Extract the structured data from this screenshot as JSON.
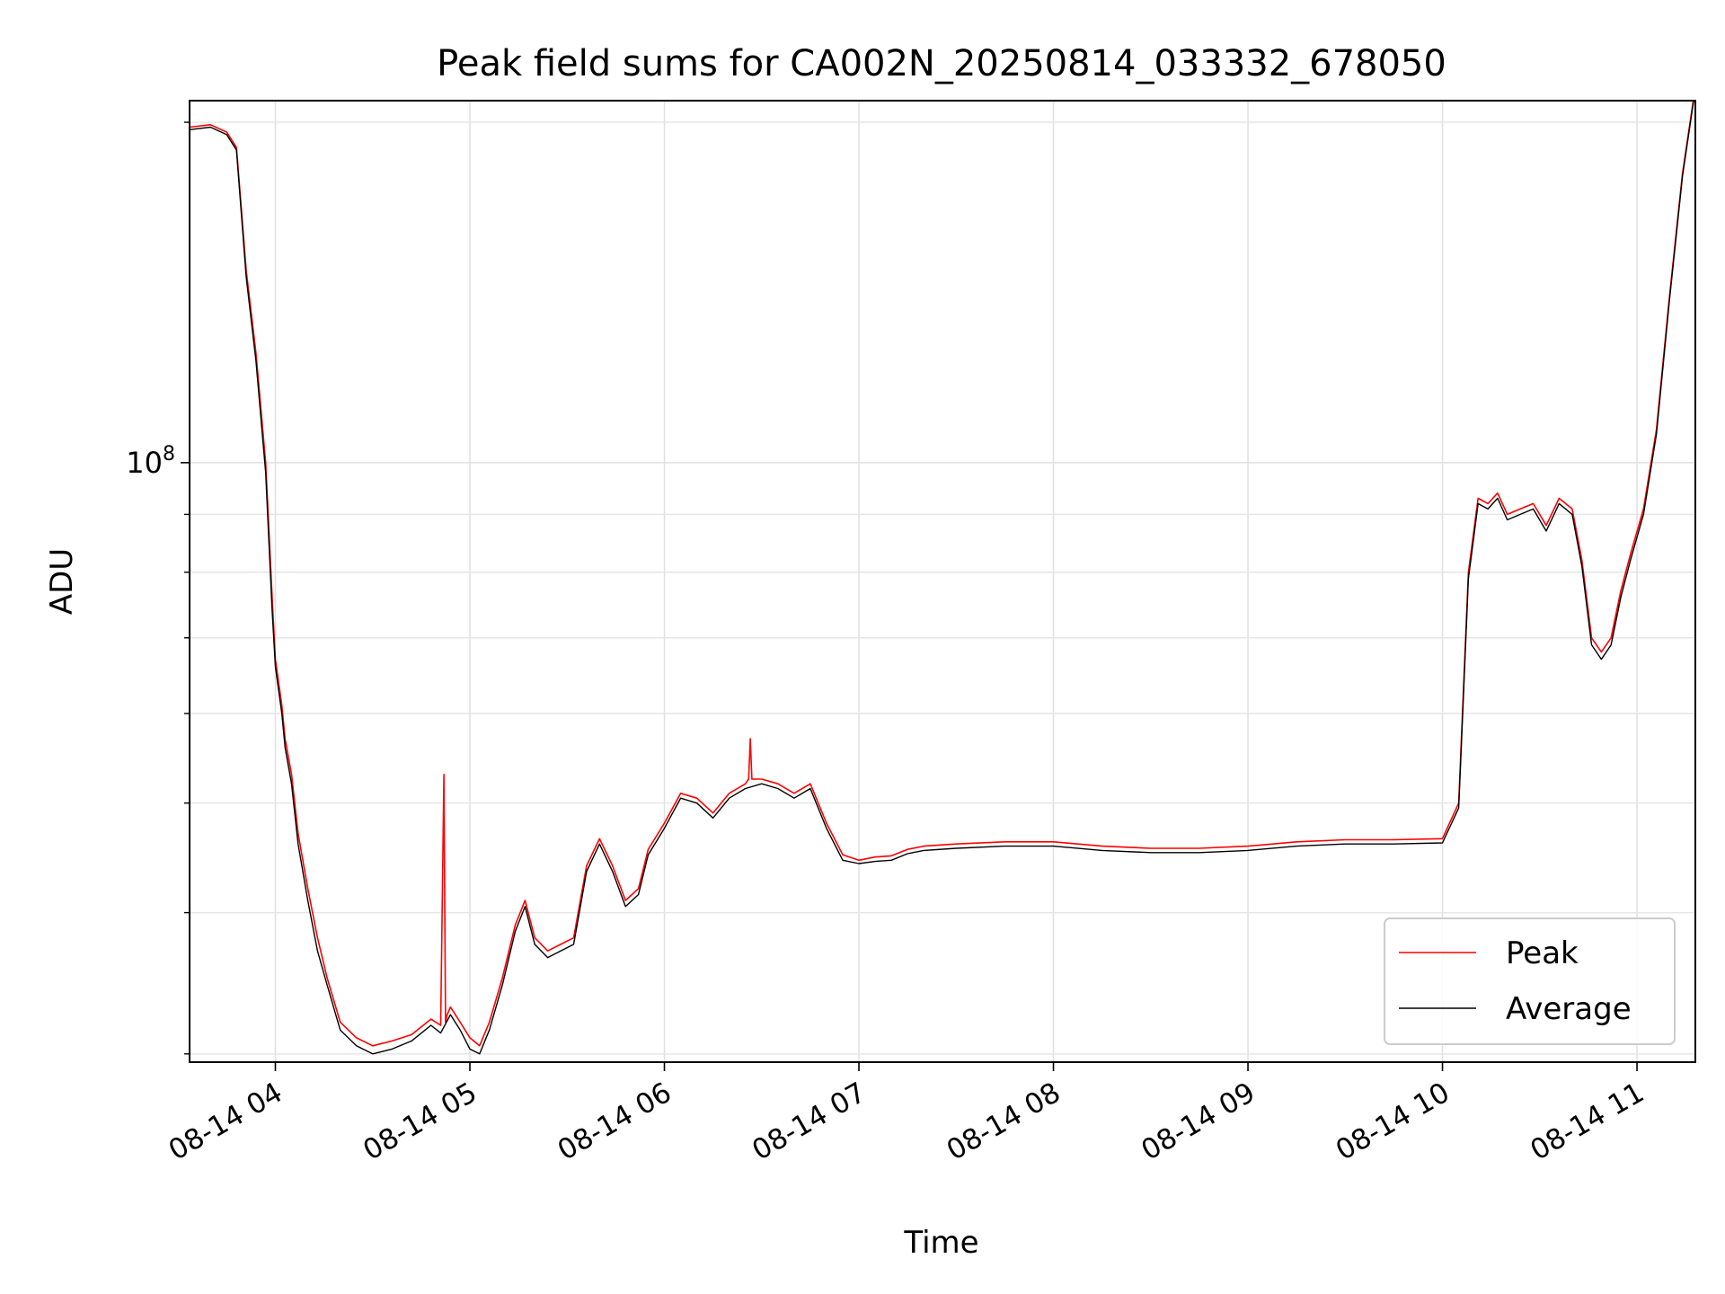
{
  "chart_data": {
    "type": "line",
    "title": "Peak field sums for CA002N_20250814_033332_678050",
    "xlabel": "Time",
    "ylabel": "ADU",
    "yscale": "log",
    "xlim": [
      "2025-08-14T03:33:32",
      "2025-08-14T11:18:00"
    ],
    "ylim": [
      29500000,
      209000000
    ],
    "x_ticks": [
      "08-14 04",
      "08-14 05",
      "08-14 06",
      "08-14 07",
      "08-14 08",
      "08-14 09",
      "08-14 10",
      "08-14 11"
    ],
    "x_tick_times": [
      "2025-08-14T04:00:00",
      "2025-08-14T05:00:00",
      "2025-08-14T06:00:00",
      "2025-08-14T07:00:00",
      "2025-08-14T08:00:00",
      "2025-08-14T09:00:00",
      "2025-08-14T10:00:00",
      "2025-08-14T11:00:00"
    ],
    "y_major_tick": {
      "value": 100000000,
      "base": "10",
      "exponent": "8"
    },
    "y_minor_ticks": [
      30000000,
      40000000,
      50000000,
      60000000,
      70000000,
      80000000,
      90000000,
      200000000
    ],
    "grid": true,
    "legend_position": "lower-right",
    "series": [
      {
        "name": "Peak",
        "color": "#ff0000",
        "x": [
          "2025-08-14T03:33:32",
          "2025-08-14T03:40:00",
          "2025-08-14T03:45:00",
          "2025-08-14T03:48:00",
          "2025-08-14T03:51:00",
          "2025-08-14T03:54:00",
          "2025-08-14T03:57:00",
          "2025-08-14T03:59:00",
          "2025-08-14T04:00:00",
          "2025-08-14T04:02:00",
          "2025-08-14T04:03:00",
          "2025-08-14T04:05:00",
          "2025-08-14T04:07:00",
          "2025-08-14T04:10:00",
          "2025-08-14T04:13:00",
          "2025-08-14T04:16:00",
          "2025-08-14T04:20:00",
          "2025-08-14T04:25:00",
          "2025-08-14T04:30:00",
          "2025-08-14T04:36:00",
          "2025-08-14T04:42:00",
          "2025-08-14T04:48:00",
          "2025-08-14T04:51:00",
          "2025-08-14T04:52:00",
          "2025-08-14T04:52:30",
          "2025-08-14T04:53:00",
          "2025-08-14T04:54:00",
          "2025-08-14T04:57:00",
          "2025-08-14T05:00:00",
          "2025-08-14T05:03:00",
          "2025-08-14T05:06:00",
          "2025-08-14T05:10:00",
          "2025-08-14T05:14:00",
          "2025-08-14T05:17:00",
          "2025-08-14T05:20:00",
          "2025-08-14T05:24:00",
          "2025-08-14T05:28:00",
          "2025-08-14T05:32:00",
          "2025-08-14T05:36:00",
          "2025-08-14T05:40:00",
          "2025-08-14T05:44:00",
          "2025-08-14T05:48:00",
          "2025-08-14T05:52:00",
          "2025-08-14T05:55:00",
          "2025-08-14T06:00:00",
          "2025-08-14T06:05:00",
          "2025-08-14T06:10:00",
          "2025-08-14T06:15:00",
          "2025-08-14T06:20:00",
          "2025-08-14T06:25:00",
          "2025-08-14T06:26:00",
          "2025-08-14T06:26:30",
          "2025-08-14T06:27:00",
          "2025-08-14T06:30:00",
          "2025-08-14T06:35:00",
          "2025-08-14T06:40:00",
          "2025-08-14T06:45:00",
          "2025-08-14T06:50:00",
          "2025-08-14T06:55:00",
          "2025-08-14T07:00:00",
          "2025-08-14T07:05:00",
          "2025-08-14T07:10:00",
          "2025-08-14T07:15:00",
          "2025-08-14T07:20:00",
          "2025-08-14T07:30:00",
          "2025-08-14T07:45:00",
          "2025-08-14T08:00:00",
          "2025-08-14T08:15:00",
          "2025-08-14T08:30:00",
          "2025-08-14T08:45:00",
          "2025-08-14T09:00:00",
          "2025-08-14T09:15:00",
          "2025-08-14T09:30:00",
          "2025-08-14T09:45:00",
          "2025-08-14T10:00:00",
          "2025-08-14T10:05:00",
          "2025-08-14T10:08:00",
          "2025-08-14T10:11:00",
          "2025-08-14T10:14:00",
          "2025-08-14T10:17:00",
          "2025-08-14T10:20:00",
          "2025-08-14T10:24:00",
          "2025-08-14T10:28:00",
          "2025-08-14T10:32:00",
          "2025-08-14T10:36:00",
          "2025-08-14T10:40:00",
          "2025-08-14T10:43:00",
          "2025-08-14T10:46:00",
          "2025-08-14T10:49:00",
          "2025-08-14T10:52:00",
          "2025-08-14T10:55:00",
          "2025-08-14T10:58:00",
          "2025-08-14T11:02:00",
          "2025-08-14T11:06:00",
          "2025-08-14T11:10:00",
          "2025-08-14T11:14:00",
          "2025-08-14T11:18:00"
        ],
        "y": [
          198000000,
          199000000,
          196000000,
          190000000,
          148000000,
          125000000,
          100000000,
          76000000,
          67000000,
          61000000,
          57000000,
          53000000,
          47000000,
          42000000,
          38000000,
          35000000,
          32000000,
          31000000,
          30500000,
          30800000,
          31200000,
          32200000,
          31800000,
          53000000,
          32000000,
          32500000,
          33000000,
          32000000,
          31000000,
          30500000,
          32000000,
          35000000,
          39000000,
          41000000,
          38000000,
          37000000,
          37500000,
          38000000,
          44000000,
          46500000,
          44000000,
          41000000,
          42000000,
          45500000,
          48000000,
          51000000,
          50500000,
          49000000,
          51000000,
          52000000,
          52500000,
          57000000,
          52500000,
          52500000,
          52000000,
          51000000,
          52000000,
          48000000,
          45000000,
          44500000,
          44800000,
          44900000,
          45500000,
          45800000,
          46000000,
          46200000,
          46200000,
          45800000,
          45600000,
          45600000,
          45800000,
          46200000,
          46400000,
          46400000,
          46500000,
          50000000,
          80000000,
          93000000,
          92000000,
          94000000,
          90000000,
          91000000,
          92000000,
          88000000,
          93000000,
          91000000,
          82000000,
          70000000,
          68000000,
          70000000,
          77000000,
          83000000,
          91000000,
          107000000,
          140000000,
          180000000,
          215000000
        ]
      },
      {
        "name": "Average",
        "color": "#000000",
        "x": [
          "2025-08-14T03:33:32",
          "2025-08-14T03:40:00",
          "2025-08-14T03:45:00",
          "2025-08-14T03:48:00",
          "2025-08-14T03:51:00",
          "2025-08-14T03:54:00",
          "2025-08-14T03:57:00",
          "2025-08-14T03:59:00",
          "2025-08-14T04:00:00",
          "2025-08-14T04:02:00",
          "2025-08-14T04:03:00",
          "2025-08-14T04:05:00",
          "2025-08-14T04:07:00",
          "2025-08-14T04:10:00",
          "2025-08-14T04:13:00",
          "2025-08-14T04:16:00",
          "2025-08-14T04:20:00",
          "2025-08-14T04:25:00",
          "2025-08-14T04:30:00",
          "2025-08-14T04:36:00",
          "2025-08-14T04:42:00",
          "2025-08-14T04:48:00",
          "2025-08-14T04:51:00",
          "2025-08-14T04:54:00",
          "2025-08-14T04:57:00",
          "2025-08-14T05:00:00",
          "2025-08-14T05:03:00",
          "2025-08-14T05:06:00",
          "2025-08-14T05:10:00",
          "2025-08-14T05:14:00",
          "2025-08-14T05:17:00",
          "2025-08-14T05:20:00",
          "2025-08-14T05:24:00",
          "2025-08-14T05:28:00",
          "2025-08-14T05:32:00",
          "2025-08-14T05:36:00",
          "2025-08-14T05:40:00",
          "2025-08-14T05:44:00",
          "2025-08-14T05:48:00",
          "2025-08-14T05:52:00",
          "2025-08-14T05:55:00",
          "2025-08-14T06:00:00",
          "2025-08-14T06:05:00",
          "2025-08-14T06:10:00",
          "2025-08-14T06:15:00",
          "2025-08-14T06:20:00",
          "2025-08-14T06:25:00",
          "2025-08-14T06:30:00",
          "2025-08-14T06:35:00",
          "2025-08-14T06:40:00",
          "2025-08-14T06:45:00",
          "2025-08-14T06:50:00",
          "2025-08-14T06:55:00",
          "2025-08-14T07:00:00",
          "2025-08-14T07:05:00",
          "2025-08-14T07:10:00",
          "2025-08-14T07:15:00",
          "2025-08-14T07:20:00",
          "2025-08-14T07:30:00",
          "2025-08-14T07:45:00",
          "2025-08-14T08:00:00",
          "2025-08-14T08:15:00",
          "2025-08-14T08:30:00",
          "2025-08-14T08:45:00",
          "2025-08-14T09:00:00",
          "2025-08-14T09:15:00",
          "2025-08-14T09:30:00",
          "2025-08-14T09:45:00",
          "2025-08-14T10:00:00",
          "2025-08-14T10:05:00",
          "2025-08-14T10:08:00",
          "2025-08-14T10:11:00",
          "2025-08-14T10:14:00",
          "2025-08-14T10:17:00",
          "2025-08-14T10:20:00",
          "2025-08-14T10:24:00",
          "2025-08-14T10:28:00",
          "2025-08-14T10:32:00",
          "2025-08-14T10:36:00",
          "2025-08-14T10:40:00",
          "2025-08-14T10:43:00",
          "2025-08-14T10:46:00",
          "2025-08-14T10:49:00",
          "2025-08-14T10:52:00",
          "2025-08-14T10:55:00",
          "2025-08-14T10:58:00",
          "2025-08-14T11:02:00",
          "2025-08-14T11:06:00",
          "2025-08-14T11:10:00",
          "2025-08-14T11:14:00",
          "2025-08-14T11:18:00"
        ],
        "y": [
          197000000,
          198000000,
          195000000,
          189000000,
          146000000,
          123000000,
          98000000,
          74000000,
          66000000,
          60000000,
          56000000,
          52000000,
          46000000,
          41000000,
          37000000,
          34500000,
          31500000,
          30500000,
          30000000,
          30300000,
          30800000,
          31800000,
          31300000,
          32500000,
          31500000,
          30300000,
          30000000,
          31500000,
          34500000,
          38500000,
          40500000,
          37500000,
          36500000,
          37000000,
          37500000,
          43500000,
          46000000,
          43500000,
          40500000,
          41500000,
          45000000,
          47500000,
          50500000,
          50000000,
          48500000,
          50500000,
          51500000,
          52000000,
          51500000,
          50500000,
          51500000,
          47500000,
          44500000,
          44200000,
          44400000,
          44500000,
          45100000,
          45400000,
          45600000,
          45800000,
          45800000,
          45400000,
          45200000,
          45200000,
          45400000,
          45800000,
          46000000,
          46000000,
          46100000,
          49500000,
          79000000,
          92000000,
          91000000,
          93000000,
          89000000,
          90000000,
          91000000,
          87000000,
          92000000,
          90000000,
          81000000,
          69000000,
          67000000,
          69000000,
          76000000,
          82000000,
          90000000,
          106000000,
          139000000,
          179000000,
          214000000
        ]
      }
    ]
  }
}
